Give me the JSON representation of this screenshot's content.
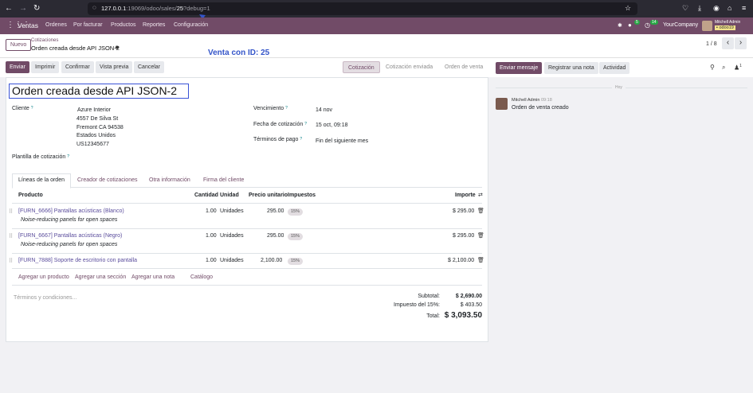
{
  "browser": {
    "url_host": "127.0.0.1",
    "url_port": ":19069",
    "url_path": "/odoo/sales/",
    "url_id": "25",
    "url_query": "?debug=1"
  },
  "app": {
    "name": "Ventas",
    "menu": [
      "Ordenes",
      "Por facturar",
      "Productos",
      "Reportes",
      "Configuración"
    ],
    "company": "YourCompany",
    "user": "Mitchell Admin",
    "db": "odoo19",
    "activity_badge": "5",
    "clock_badge": "14"
  },
  "control": {
    "new_label": "Nuevo",
    "breadcrumb_parent": "Cotizaciones",
    "breadcrumb_current": "Orden creada desde API JSON-2",
    "pager": "1 / 8"
  },
  "annotation": "Venta con ID: 25",
  "actions": {
    "send": "Enviar",
    "print": "Imprimir",
    "confirm": "Confirmar",
    "preview": "Vista previa",
    "cancel": "Cancelar"
  },
  "statusbar": [
    "Cotización",
    "Cotización enviada",
    "Orden de venta"
  ],
  "form": {
    "title": "Orden creada desde API JSON-2",
    "customer_label": "Cliente",
    "customer_name": "Azure Interior",
    "address": [
      "4557 De Silva St",
      "Fremont CA 94538",
      "Estados Unidos",
      "US12345677"
    ],
    "expiration_label": "Vencimiento",
    "expiration": "14 nov",
    "quote_date_label": "Fecha de cotización",
    "quote_date": "15 oct, 09:18",
    "payment_terms_label": "Términos de pago",
    "payment_terms": "Fin del siguiente mes",
    "template_label": "Plantilla de cotización"
  },
  "tabs": [
    "Líneas de la orden",
    "Creador de cotizaciones",
    "Otra información",
    "Firma del cliente"
  ],
  "columns": {
    "product": "Producto",
    "qty": "Cantidad",
    "uom": "Unidad",
    "price": "Precio unitario",
    "taxes": "Impuestos",
    "amount": "Importe"
  },
  "lines": [
    {
      "product": "[FURN_6666] Pantallas acústicas (Blanco)",
      "desc": "Noise-reducing panels for open spaces",
      "qty": "1.00",
      "uom": "Unidades",
      "price": "295.00",
      "tax": "15%",
      "amount": "$ 295.00"
    },
    {
      "product": "[FURN_6667] Pantallas acústicas (Negro)",
      "desc": "Noise-reducing panels for open spaces",
      "qty": "1.00",
      "uom": "Unidades",
      "price": "295.00",
      "tax": "15%",
      "amount": "$ 295.00"
    },
    {
      "product": "[FURN_7888] Soporte de escritorio con pantalla",
      "desc": "",
      "qty": "1.00",
      "uom": "Unidades",
      "price": "2,100.00",
      "tax": "15%",
      "amount": "$ 2,100.00"
    }
  ],
  "add_links": [
    "Agregar un producto",
    "Agregar una sección",
    "Agregar una nota",
    "Catálogo"
  ],
  "terms_placeholder": "Términos y condiciones...",
  "totals": {
    "subtotal_label": "Subtotal:",
    "subtotal": "$ 2,690.00",
    "tax_label": "Impuesto del 15%:",
    "tax": "$ 403.50",
    "total_label": "Total:",
    "total": "$ 3,093.50"
  },
  "chatter": {
    "send_message": "Enviar mensaje",
    "log_note": "Registrar una nota",
    "activity": "Actividad",
    "followers_count": "1",
    "today": "Hoy",
    "author": "Mitchell Admin",
    "time": "09:18",
    "message": "Orden de venta creado"
  }
}
